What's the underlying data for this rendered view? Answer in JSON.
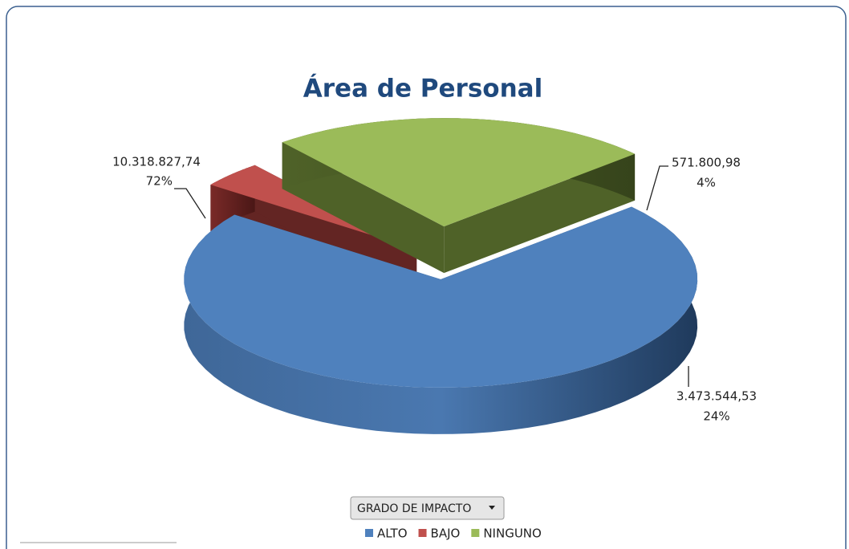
{
  "chart_data": {
    "type": "pie",
    "title": "Área de Personal",
    "filter_button": "GRADO DE IMPACTO",
    "categories": [
      "ALTO",
      "BAJO",
      "NINGUNO"
    ],
    "values": [
      10318827.74,
      571800.98,
      3473544.53
    ],
    "value_labels": [
      "10.318.827,74",
      "571.800,98",
      "3.473.544,53"
    ],
    "percentages": [
      72,
      4,
      24
    ],
    "percentage_labels": [
      "72%",
      "4%",
      "24%"
    ],
    "colors": [
      "#4f81bd",
      "#c0504d",
      "#9bbb59"
    ],
    "legend": "bottom"
  }
}
